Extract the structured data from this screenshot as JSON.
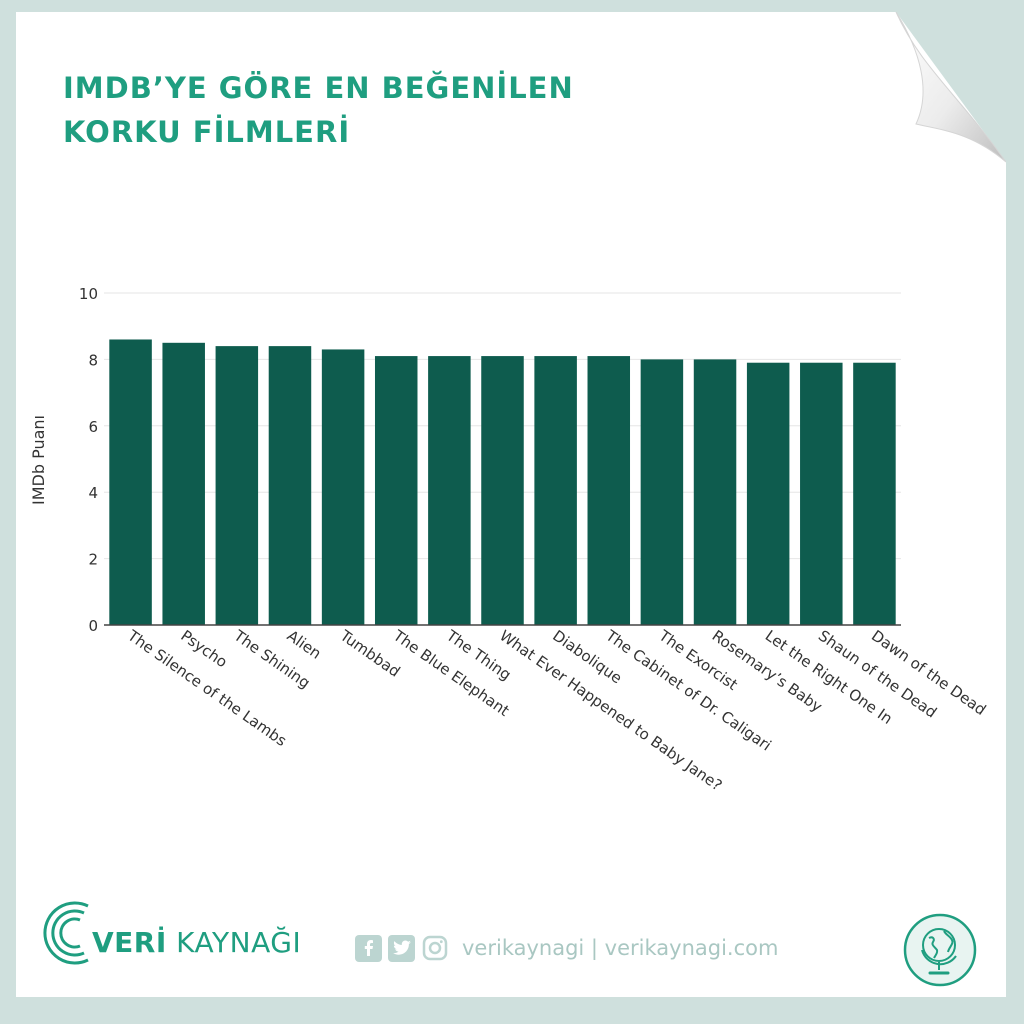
{
  "title": {
    "line1": "IMDB’YE GÖRE EN BEĞENİLEN",
    "line2": "KORKU FİLMLERİ"
  },
  "chart_data": {
    "type": "bar",
    "ylabel": "IMDb Puanı",
    "xlabel": "",
    "ylim": [
      0,
      10
    ],
    "yticks": [
      0,
      2,
      4,
      6,
      8,
      10
    ],
    "grid": true,
    "bar_color": "#0e5c4e",
    "categories": [
      "The Silence of the Lambs",
      "Psycho",
      "The Shining",
      "Alien",
      "Tumbbad",
      "The Blue Elephant",
      "The Thing",
      "What Ever Happened to Baby Jane?",
      "Diabolique",
      "The Cabinet of Dr. Caligari",
      "The Exorcist",
      "Rosemary’s Baby",
      "Let the Right One In",
      "Shaun of the Dead",
      "Dawn of the Dead"
    ],
    "values": [
      8.6,
      8.5,
      8.4,
      8.4,
      8.3,
      8.1,
      8.1,
      8.1,
      8.1,
      8.1,
      8.0,
      8.0,
      7.9,
      7.9,
      7.9
    ]
  },
  "footer": {
    "brand_bold": "VERİ",
    "brand_rest": " KAYNAĞI",
    "handle": "verikaynagi | verikaynagi.com",
    "icons": [
      "facebook-icon",
      "twitter-icon",
      "instagram-icon",
      "globe-icon"
    ]
  },
  "colors": {
    "accent": "#1f9e80",
    "bar": "#0e5c4e",
    "background": "#cfe0dd",
    "social": "#bcd5d1"
  }
}
